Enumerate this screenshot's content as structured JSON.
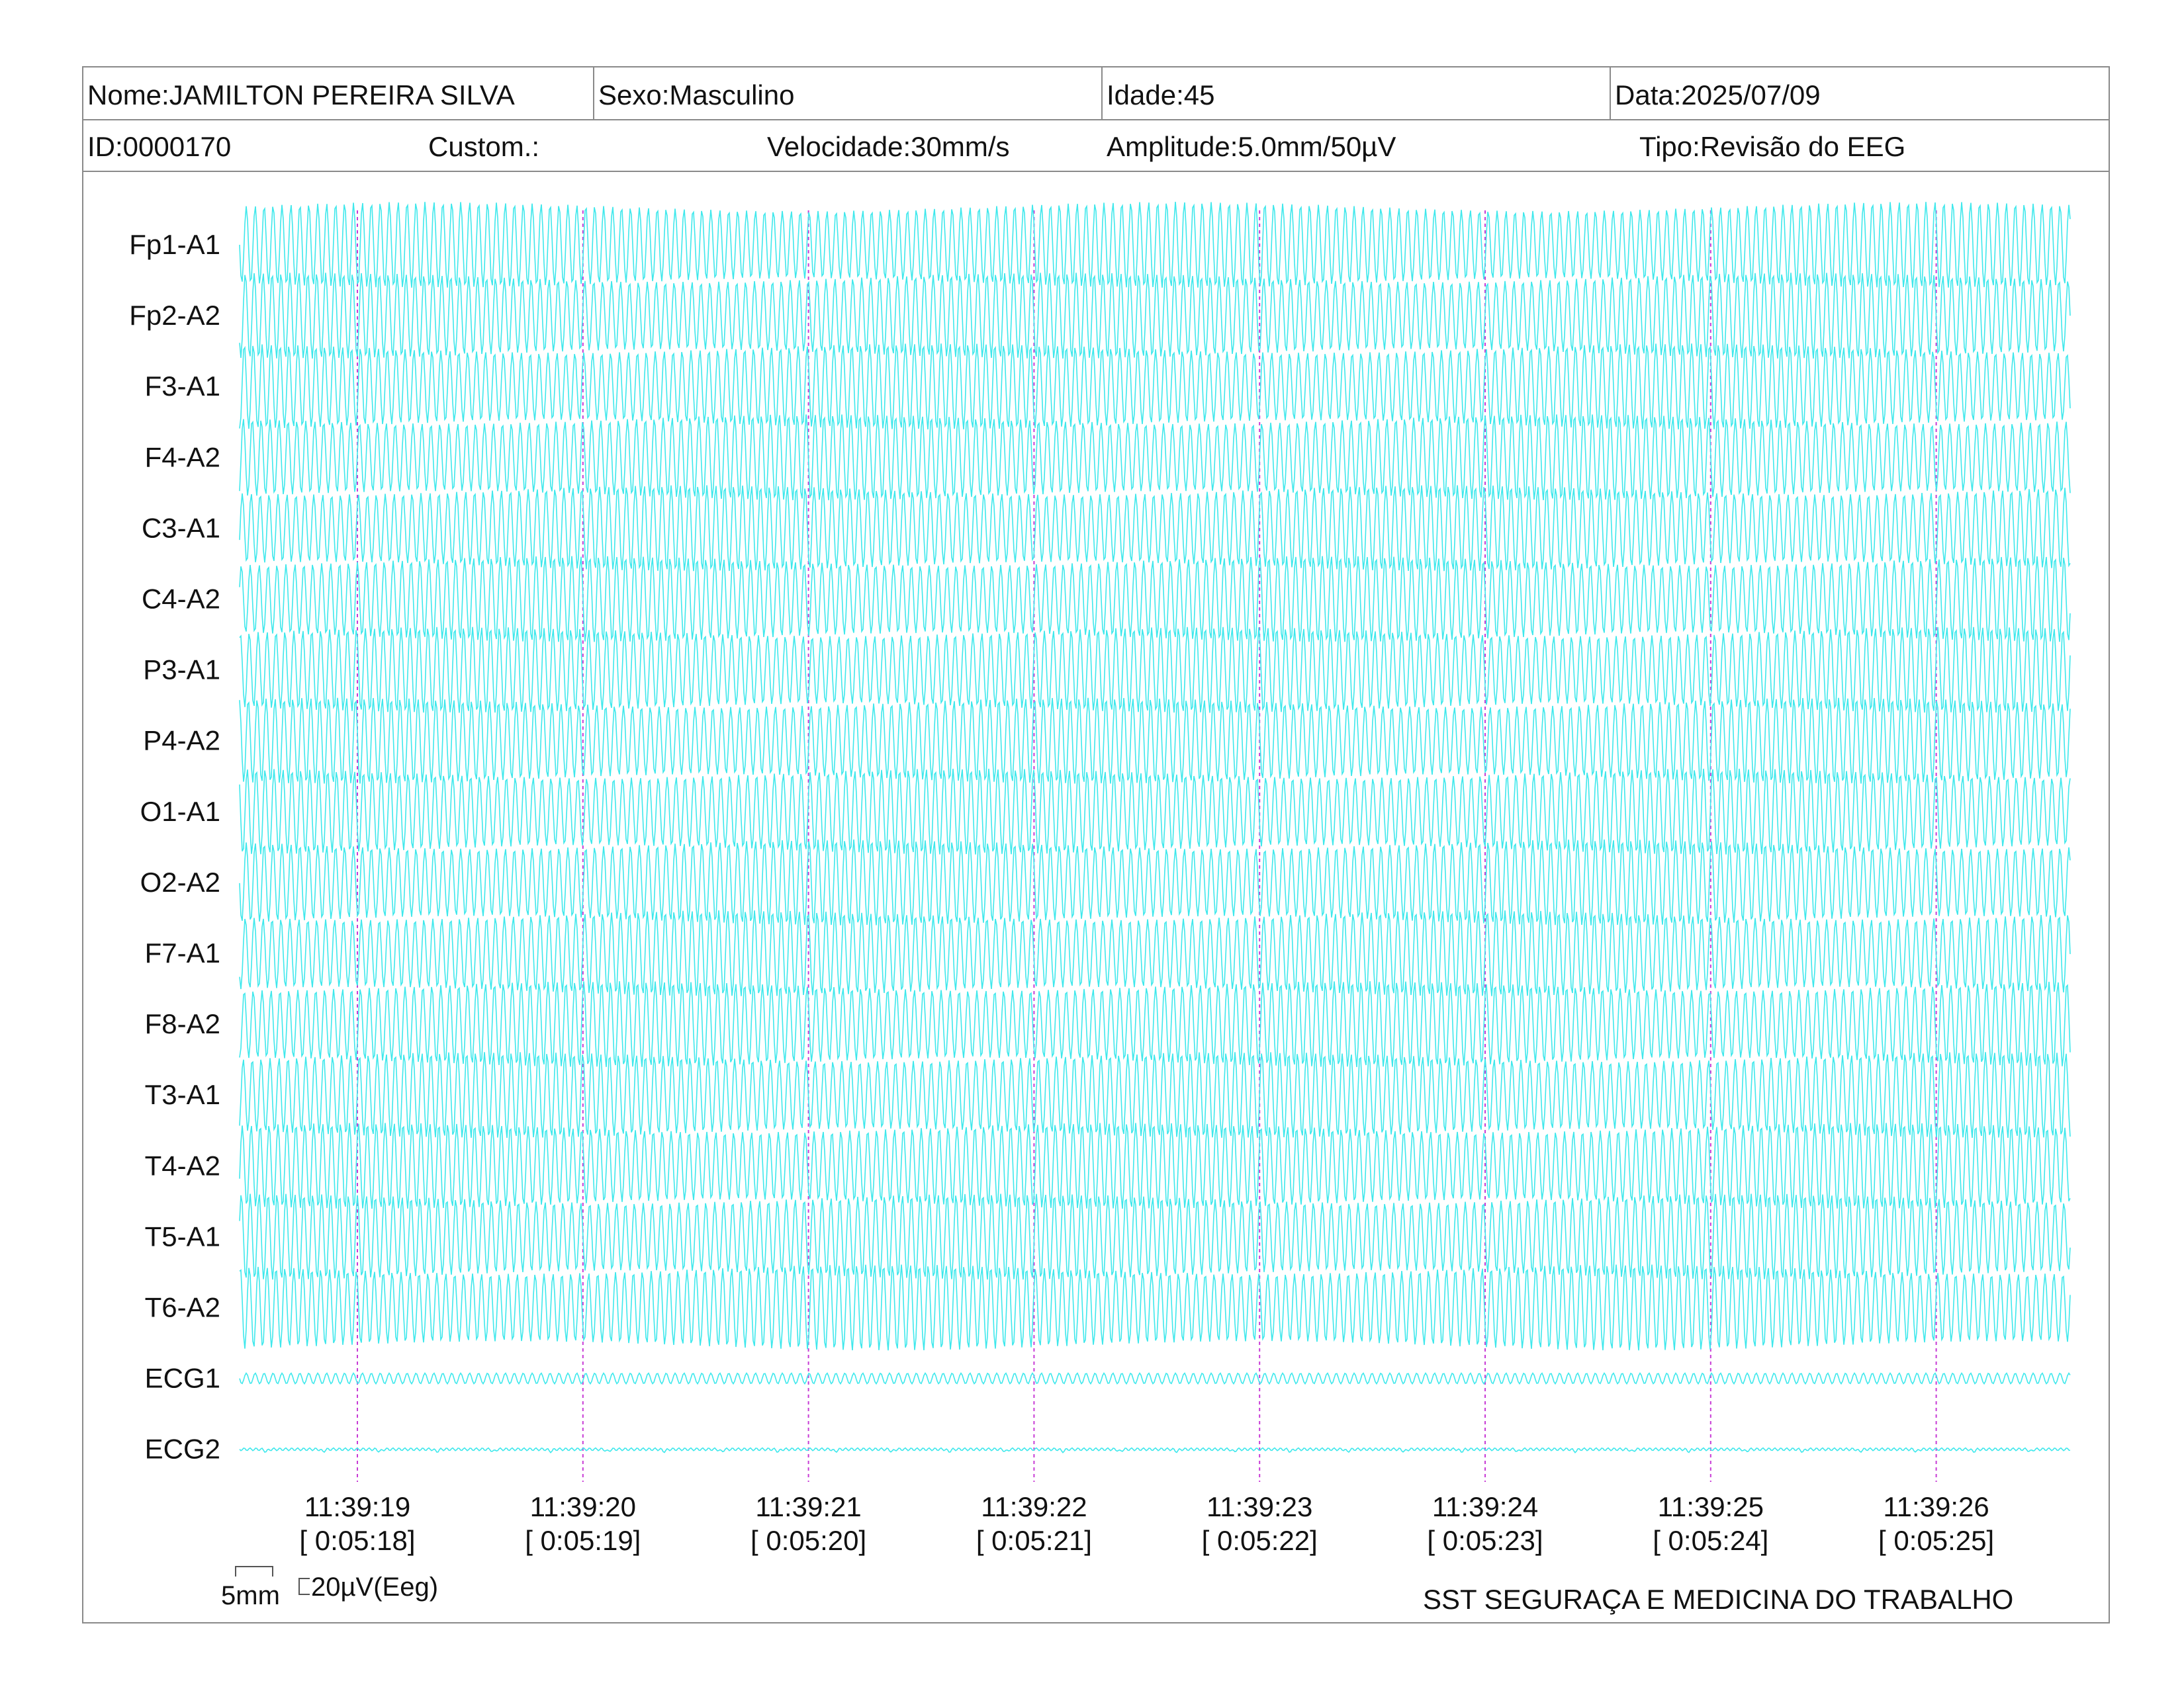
{
  "header": {
    "nome": "Nome:JAMILTON PEREIRA SILVA",
    "sexo": "Sexo:Masculino",
    "idade": "Idade:45",
    "data": "Data:2025/07/09",
    "id": "ID:0000170",
    "custom": "Custom.:",
    "velocidade": "Velocidade:30mm/s",
    "amplitude": "Amplitude:5.0mm/50µV",
    "tipo": "Tipo:Revisão do EEG"
  },
  "channels": [
    "Fp1-A1",
    "Fp2-A2",
    "F3-A1",
    "F4-A2",
    "C3-A1",
    "C4-A2",
    "P3-A1",
    "P4-A2",
    "O1-A1",
    "O2-A2",
    "F7-A1",
    "F8-A2",
    "T3-A1",
    "T4-A2",
    "T5-A1",
    "T6-A2",
    "ECG1",
    "ECG2"
  ],
  "time_marks": [
    {
      "time": "11:39:19",
      "rel": "[ 0:05:18]"
    },
    {
      "time": "11:39:20",
      "rel": "[ 0:05:19]"
    },
    {
      "time": "11:39:21",
      "rel": "[ 0:05:20]"
    },
    {
      "time": "11:39:22",
      "rel": "[ 0:05:21]"
    },
    {
      "time": "11:39:23",
      "rel": "[ 0:05:22]"
    },
    {
      "time": "11:39:24",
      "rel": "[ 0:05:23]"
    },
    {
      "time": "11:39:25",
      "rel": "[ 0:05:24]"
    },
    {
      "time": "11:39:26",
      "rel": "[ 0:05:25]"
    }
  ],
  "scale_bar": {
    "time_label": "5mm",
    "amp_label": "20µV(Eeg)"
  },
  "footer": {
    "org": "SST SEGURAÇA E MEDICINA DO TRABALHO"
  },
  "colors": {
    "trace": "#3fe8ec",
    "marker": "#c83cd6",
    "border": "#8a8a8a"
  }
}
